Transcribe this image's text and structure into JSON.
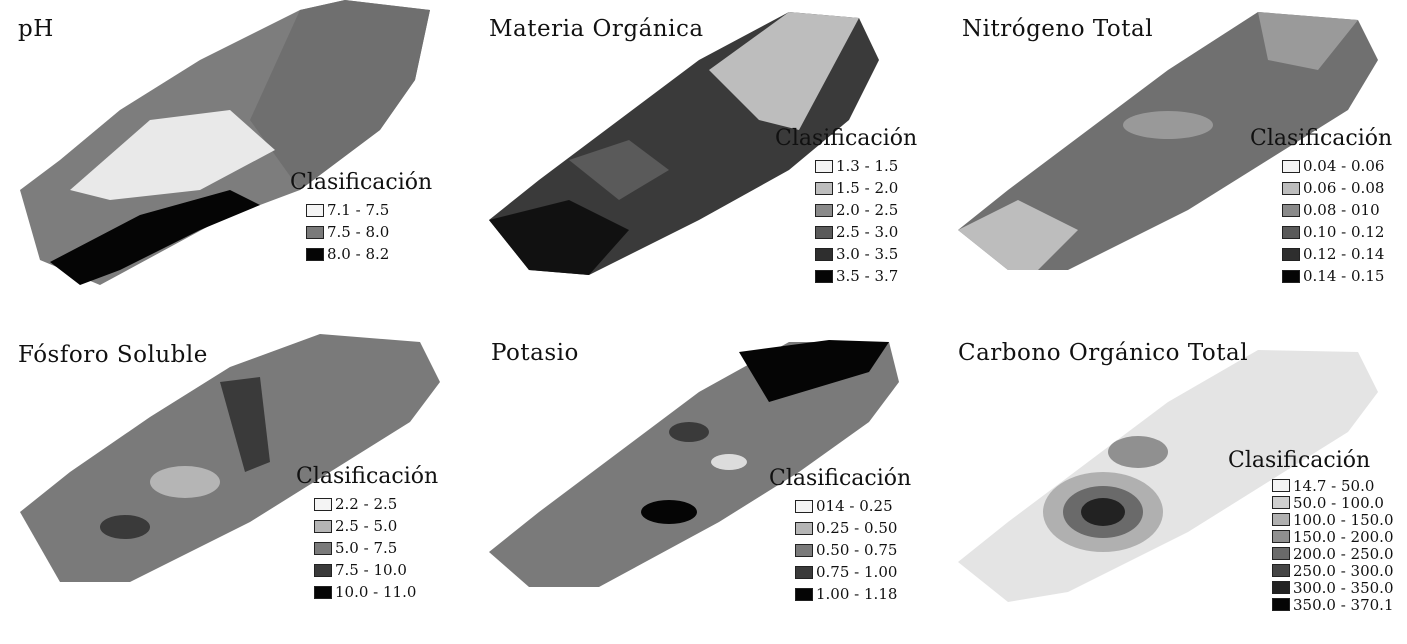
{
  "legend_title": "Clasificación",
  "panels": [
    {
      "title": "pH",
      "classes": [
        {
          "label": "7.1 - 7.5",
          "color": "#f4f4f4"
        },
        {
          "label": "7.5 - 8.0",
          "color": "#7a7a7a"
        },
        {
          "label": "8.0 - 8.2",
          "color": "#050505"
        }
      ]
    },
    {
      "title": "Materia Orgánica",
      "classes": [
        {
          "label": "1.3 - 1.5",
          "color": "#f4f4f4"
        },
        {
          "label": "1.5 - 2.0",
          "color": "#bdbdbd"
        },
        {
          "label": "2.0 - 2.5",
          "color": "#8a8a8a"
        },
        {
          "label": "2.5 - 3.0",
          "color": "#5a5a5a"
        },
        {
          "label": "3.0 - 3.5",
          "color": "#2e2e2e"
        },
        {
          "label": "3.5 - 3.7",
          "color": "#050505"
        }
      ]
    },
    {
      "title": "Nitrógeno Total",
      "classes": [
        {
          "label": "0.04 - 0.06",
          "color": "#f4f4f4"
        },
        {
          "label": "0.06 - 0.08",
          "color": "#bdbdbd"
        },
        {
          "label": "0.08 - 010",
          "color": "#8a8a8a"
        },
        {
          "label": "0.10 - 0.12",
          "color": "#5a5a5a"
        },
        {
          "label": "0.12 - 0.14",
          "color": "#2e2e2e"
        },
        {
          "label": "0.14 - 0.15",
          "color": "#050505"
        }
      ]
    },
    {
      "title": "Fósforo Soluble",
      "classes": [
        {
          "label": "2.2 - 2.5",
          "color": "#f4f4f4"
        },
        {
          "label": "2.5 - 5.0",
          "color": "#b5b5b5"
        },
        {
          "label": "5.0 - 7.5",
          "color": "#7a7a7a"
        },
        {
          "label": "7.5 - 10.0",
          "color": "#3a3a3a"
        },
        {
          "label": "10.0 - 11.0",
          "color": "#050505"
        }
      ]
    },
    {
      "title": "Potasio",
      "classes": [
        {
          "label": "014 - 0.25",
          "color": "#f4f4f4"
        },
        {
          "label": "0.25 - 0.50",
          "color": "#b5b5b5"
        },
        {
          "label": "0.50 - 0.75",
          "color": "#7a7a7a"
        },
        {
          "label": "0.75 - 1.00",
          "color": "#3a3a3a"
        },
        {
          "label": "1.00 - 1.18",
          "color": "#050505"
        }
      ]
    },
    {
      "title": "Carbono Orgánico Total",
      "classes": [
        {
          "label": "14.7 - 50.0",
          "color": "#f4f4f4"
        },
        {
          "label": "50.0 - 100.0",
          "color": "#cfcfcf"
        },
        {
          "label": "100.0 - 150.0",
          "color": "#b0b0b0"
        },
        {
          "label": "150.0 - 200.0",
          "color": "#909090"
        },
        {
          "label": "200.0 - 250.0",
          "color": "#6a6a6a"
        },
        {
          "label": "250.0 - 300.0",
          "color": "#454545"
        },
        {
          "label": "300.0 - 350.0",
          "color": "#222222"
        },
        {
          "label": "350.0 - 370.1",
          "color": "#050505"
        }
      ]
    }
  ]
}
